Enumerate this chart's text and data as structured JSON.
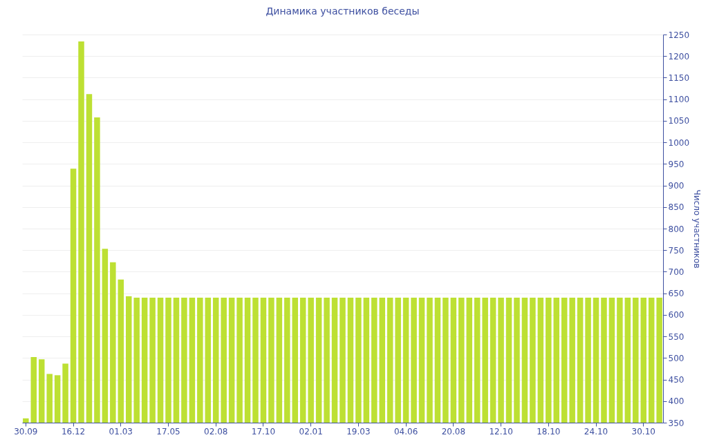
{
  "chart_data": {
    "type": "bar",
    "title": "Динамика участников беседы",
    "ylabel": "Число участников",
    "categories": [
      "30.09",
      null,
      null,
      null,
      null,
      null,
      "16.12",
      null,
      null,
      null,
      null,
      null,
      "01.03",
      null,
      null,
      null,
      null,
      null,
      "17.05",
      null,
      null,
      null,
      null,
      null,
      "02.08",
      null,
      null,
      null,
      null,
      null,
      "17.10",
      null,
      null,
      null,
      null,
      null,
      "02.01",
      null,
      null,
      null,
      null,
      null,
      "19.03",
      null,
      null,
      null,
      null,
      null,
      "04.06",
      null,
      null,
      null,
      null,
      null,
      "20.08",
      null,
      null,
      null,
      null,
      null,
      "12.10",
      null,
      null,
      null,
      null,
      null,
      "18.10",
      null,
      null,
      null,
      null,
      null,
      "24.10",
      null,
      null,
      null,
      null,
      null,
      "30.10",
      null,
      null
    ],
    "values": [
      360,
      502,
      497,
      463,
      460,
      487,
      939,
      1234,
      1112,
      1058,
      753,
      722,
      682,
      643,
      640,
      640,
      640,
      640,
      640,
      640,
      640,
      640,
      640,
      640,
      640,
      640,
      640,
      640,
      640,
      640,
      640,
      640,
      640,
      640,
      640,
      640,
      640,
      640,
      640,
      640,
      640,
      640,
      640,
      640,
      640,
      640,
      640,
      640,
      640,
      640,
      640,
      640,
      640,
      640,
      640,
      640,
      640,
      640,
      640,
      640,
      640,
      640,
      640,
      640,
      640,
      640,
      640,
      640,
      640,
      640,
      640,
      640,
      640,
      640,
      640,
      640,
      640,
      640,
      640,
      640,
      640
    ],
    "color": "#bde033",
    "ylim": [
      350,
      1250
    ],
    "yticks": [
      350,
      400,
      450,
      500,
      550,
      600,
      650,
      700,
      750,
      800,
      850,
      900,
      950,
      1000,
      1050,
      1100,
      1150,
      1200,
      1250
    ],
    "grid": "y"
  }
}
